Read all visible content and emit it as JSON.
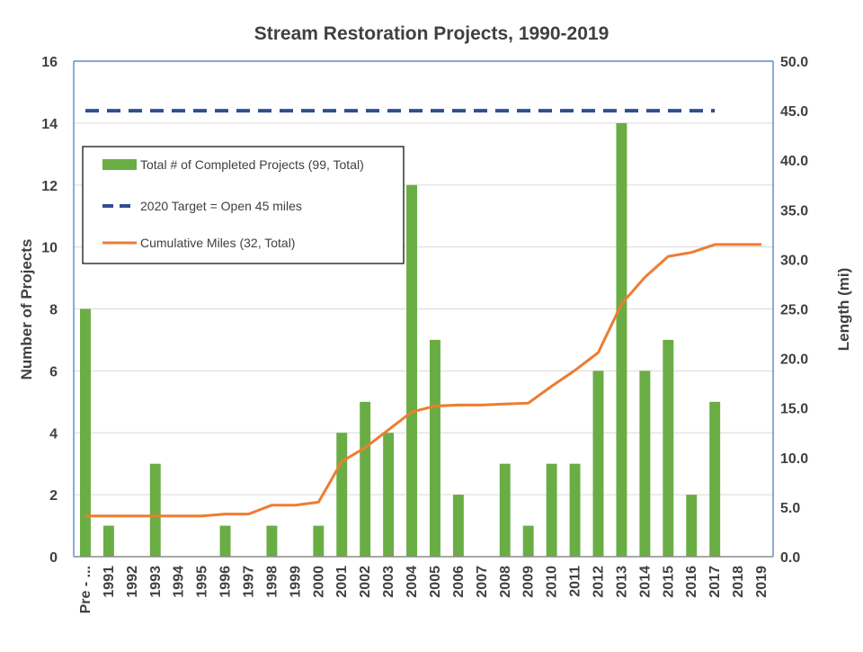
{
  "chart_data": {
    "type": "bar",
    "title": "Stream Restoration Projects, 1990-2019",
    "categories": [
      "Pre - ...",
      "1991",
      "1992",
      "1993",
      "1994",
      "1995",
      "1996",
      "1997",
      "1998",
      "1999",
      "2000",
      "2001",
      "2002",
      "2003",
      "2004",
      "2005",
      "2006",
      "2007",
      "2008",
      "2009",
      "2010",
      "2011",
      "2012",
      "2013",
      "2014",
      "2015",
      "2016",
      "2017",
      "2018",
      "2019"
    ],
    "y_axis_left": {
      "label": "Number of Projects",
      "range": [
        0,
        16
      ],
      "ticks": [
        "0",
        "2",
        "4",
        "6",
        "8",
        "10",
        "12",
        "14",
        "16"
      ]
    },
    "y_axis_right": {
      "label": "Length (mi)",
      "range": [
        0,
        50
      ],
      "ticks": [
        "0.0",
        "5.0",
        "10.0",
        "15.0",
        "20.0",
        "25.0",
        "30.0",
        "35.0",
        "40.0",
        "45.0",
        "50.0"
      ]
    },
    "series": [
      {
        "name": "Total # of Completed Projects (99, Total)",
        "type": "bar",
        "axis": "left",
        "color": "#6aad45",
        "values": [
          8,
          1,
          0,
          3,
          0,
          0,
          1,
          0,
          1,
          0,
          1,
          4,
          5,
          4,
          12,
          7,
          2,
          0,
          3,
          1,
          3,
          3,
          6,
          14,
          6,
          7,
          2,
          5,
          0,
          0
        ]
      },
      {
        "name": "2020 Target = Open 45 miles",
        "type": "line",
        "style": "dashed",
        "axis": "right",
        "color": "#2e4f8f",
        "values": [
          45,
          45,
          45,
          45,
          45,
          45,
          45,
          45,
          45,
          45,
          45,
          45,
          45,
          45,
          45,
          45,
          45,
          45,
          45,
          45,
          45,
          45,
          45,
          45,
          45,
          45,
          45,
          45,
          null,
          null
        ]
      },
      {
        "name": "Cumulative Miles (32, Total)",
        "type": "line",
        "axis": "right",
        "color": "#ed7d31",
        "values": [
          4.1,
          4.1,
          4.1,
          4.1,
          4.1,
          4.1,
          4.3,
          4.3,
          5.2,
          5.2,
          5.5,
          9.6,
          11.0,
          12.8,
          14.6,
          15.2,
          15.3,
          15.3,
          15.4,
          15.5,
          17.2,
          18.8,
          20.6,
          25.5,
          28.2,
          30.3,
          30.7,
          31.5,
          31.5,
          31.5
        ]
      }
    ],
    "legend": {
      "position": "upper-left",
      "border": true
    },
    "grid": {
      "horizontal": true,
      "vertical": false
    }
  }
}
